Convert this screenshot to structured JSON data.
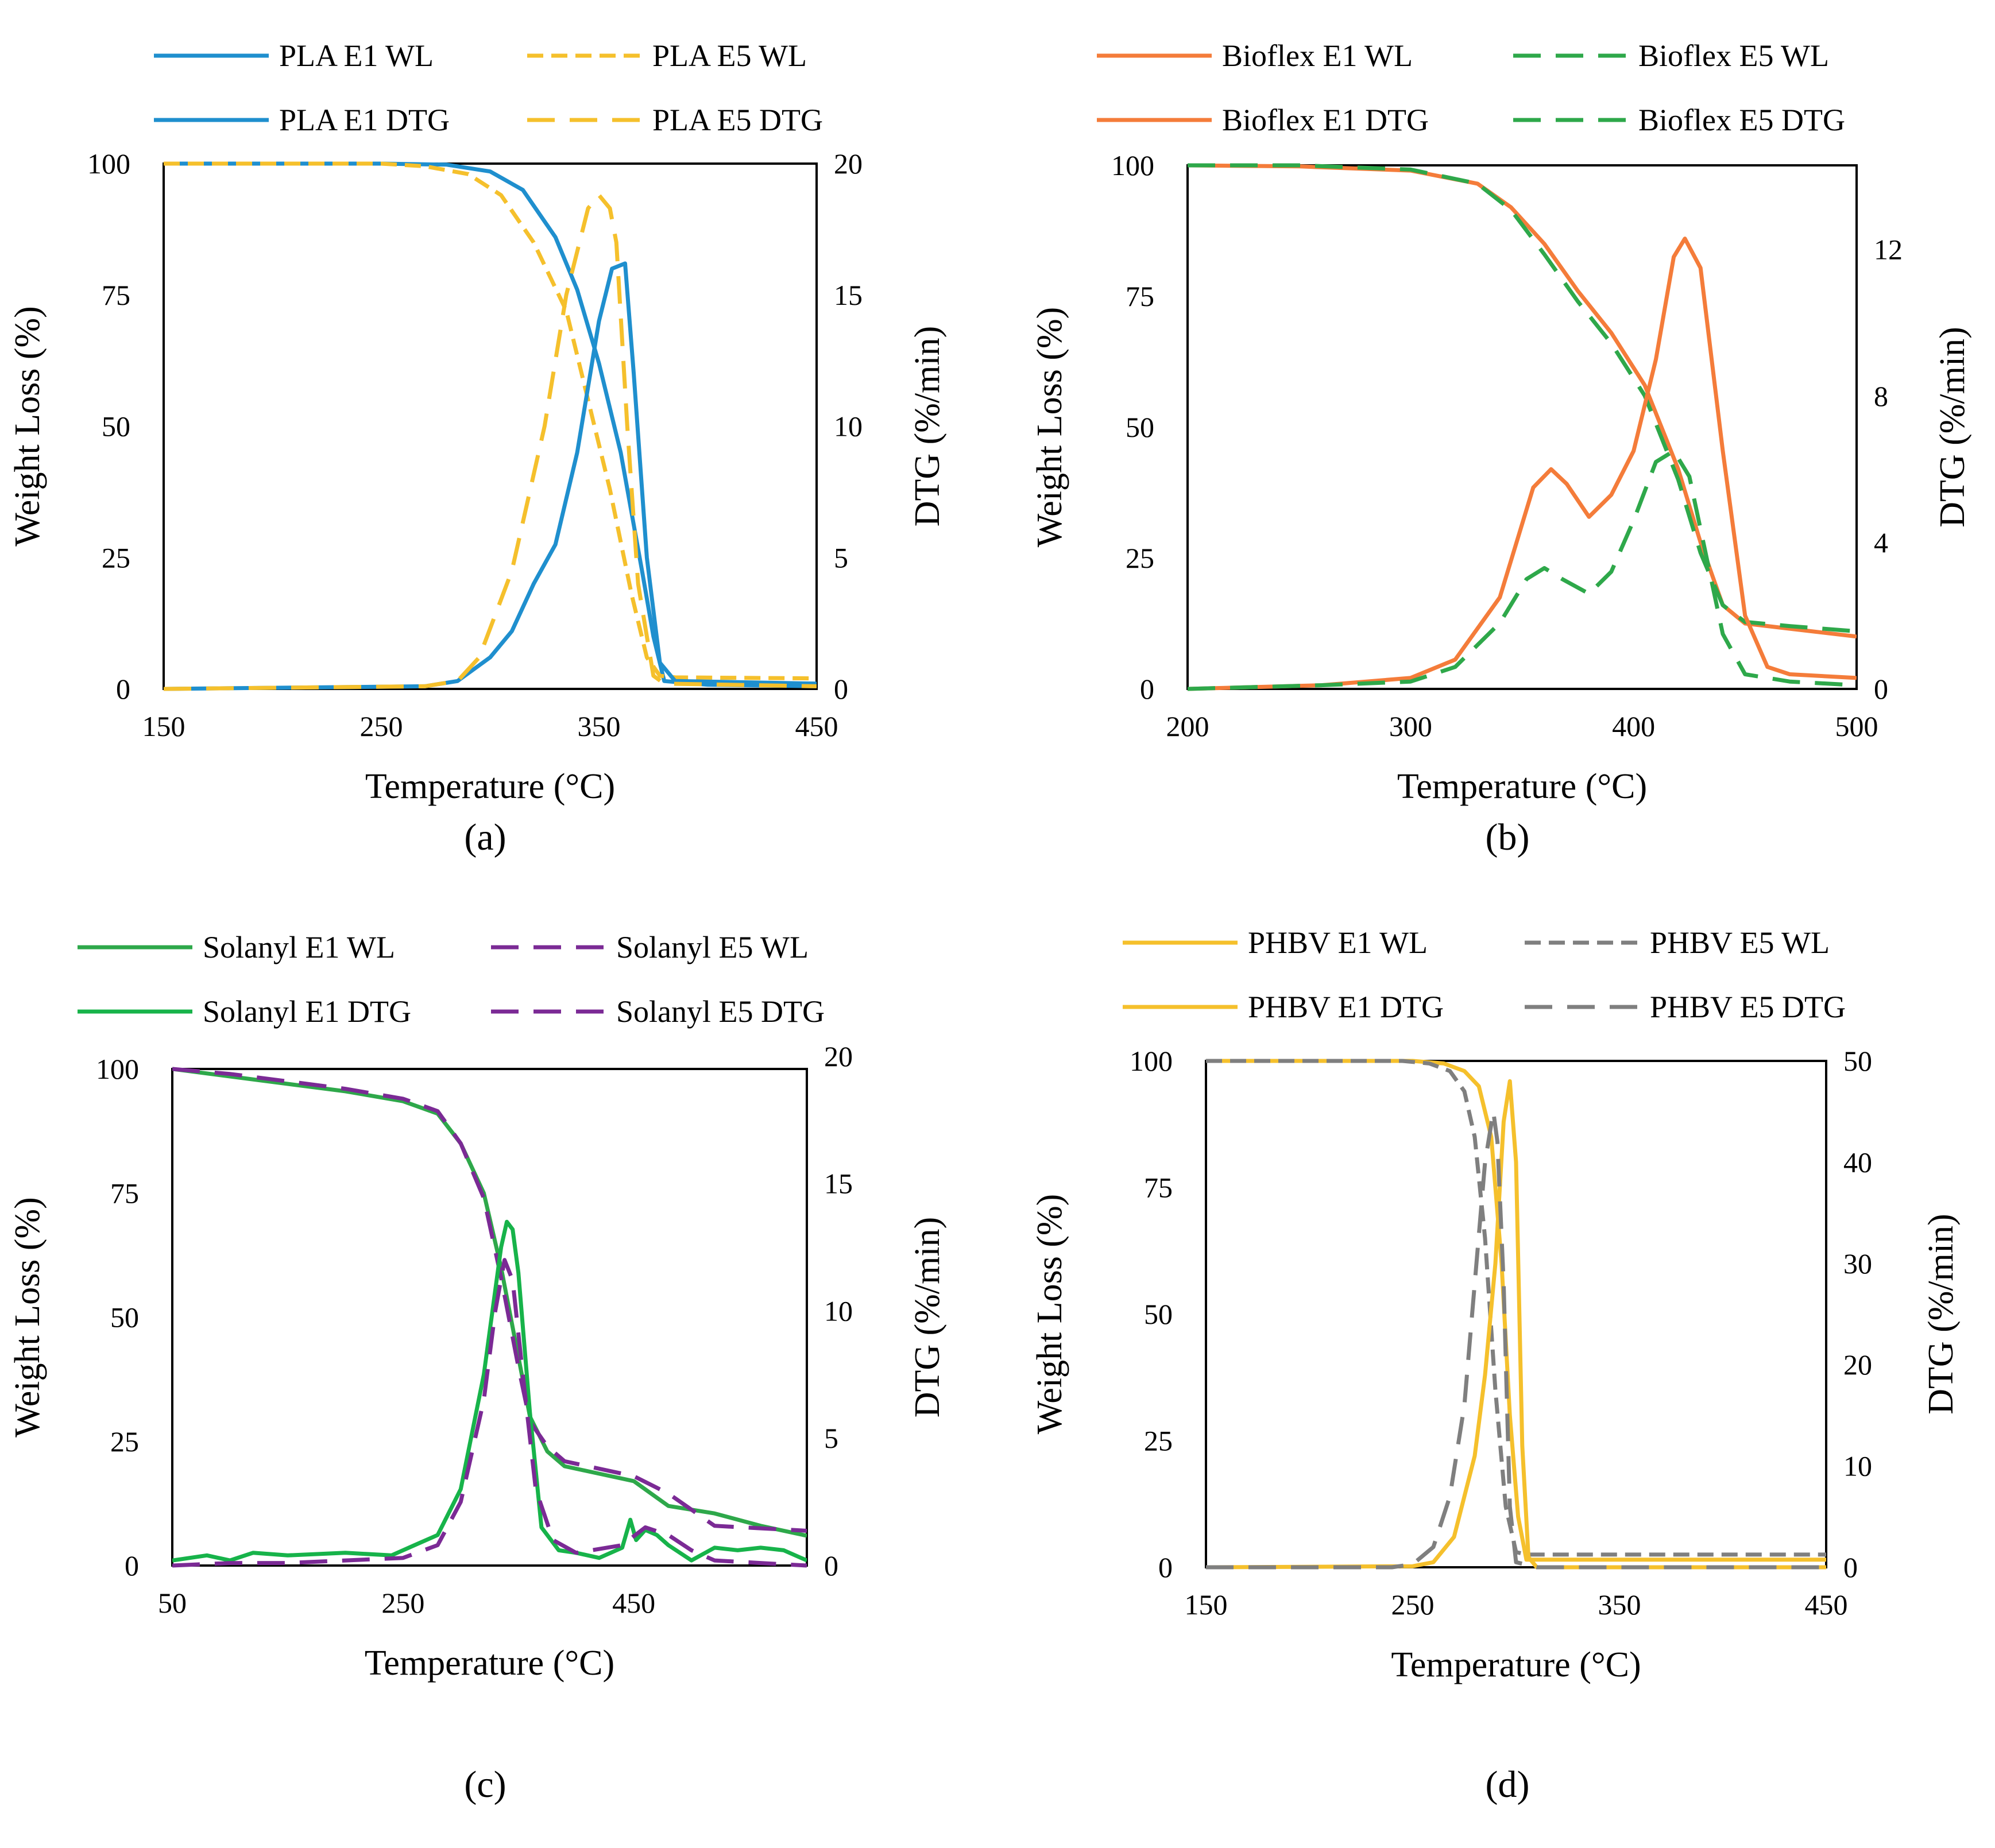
{
  "figure": {
    "panels": [
      "a",
      "b",
      "c",
      "d"
    ]
  },
  "chart_data": [
    {
      "id": "a",
      "type": "line",
      "panel_label": "(a)",
      "xlabel": "Temperature (°C)",
      "ylabel": "Weight Loss (%)",
      "y2label": "DTG (%/min)",
      "xlim": [
        150,
        450
      ],
      "ylim": [
        0,
        100
      ],
      "y2lim": [
        0,
        20
      ],
      "xticks": [
        150,
        250,
        350,
        450
      ],
      "yticks": [
        0,
        25,
        50,
        75,
        100
      ],
      "y2ticks": [
        0,
        5,
        10,
        15,
        20
      ],
      "legend": [
        {
          "label": "PLA E1 WL",
          "color": "#1f8fce",
          "dash": "solid"
        },
        {
          "label": "PLA E5 WL",
          "color": "#f5c02c",
          "dash": "short"
        },
        {
          "label": "PLA E1 DTG",
          "color": "#1f8fce",
          "dash": "solid"
        },
        {
          "label": "PLA E5 DTG",
          "color": "#f5c02c",
          "dash": "long"
        }
      ],
      "series": [
        {
          "name": "PLA E1 WL",
          "axis": "left",
          "color": "#1f8fce",
          "dash": "solid",
          "x": [
            150,
            250,
            280,
            300,
            315,
            330,
            340,
            350,
            360,
            370,
            375,
            380,
            400,
            450
          ],
          "y": [
            100,
            100,
            99.8,
            98.5,
            95,
            86,
            76,
            62,
            45,
            22,
            10,
            1.5,
            0.8,
            0.5
          ]
        },
        {
          "name": "PLA E5 WL",
          "axis": "left",
          "color": "#f5c02c",
          "dash": "short",
          "x": [
            150,
            250,
            270,
            290,
            305,
            320,
            335,
            345,
            355,
            365,
            372,
            378,
            385,
            450
          ],
          "y": [
            100,
            100,
            99.5,
            98,
            94,
            85,
            72,
            55,
            38,
            18,
            6,
            2.5,
            2.2,
            2
          ]
        },
        {
          "name": "PLA E1 DTG",
          "axis": "right",
          "color": "#1f8fce",
          "dash": "solid",
          "x": [
            150,
            270,
            285,
            300,
            310,
            320,
            330,
            340,
            350,
            356,
            362,
            366,
            372,
            378,
            385,
            450
          ],
          "y": [
            0,
            0.1,
            0.3,
            1.2,
            2.2,
            4,
            5.5,
            9,
            14,
            16,
            16.2,
            12,
            5,
            1,
            0.3,
            0.2
          ]
        },
        {
          "name": "PLA E5 DTG",
          "axis": "right",
          "color": "#f5c02c",
          "dash": "long",
          "x": [
            150,
            270,
            285,
            295,
            310,
            325,
            335,
            345,
            350,
            355,
            358,
            363,
            368,
            375,
            380,
            450
          ],
          "y": [
            0,
            0.1,
            0.3,
            1.2,
            4.5,
            10,
            15,
            18.3,
            18.8,
            18.3,
            17,
            10,
            4,
            0.5,
            0.2,
            0.1
          ]
        }
      ]
    },
    {
      "id": "b",
      "type": "line",
      "panel_label": "(b)",
      "xlabel": "Temperature (°C)",
      "ylabel": "Weight Loss (%)",
      "y2label": "DTG (%/min)",
      "xlim": [
        200,
        500
      ],
      "ylim": [
        0,
        100
      ],
      "y2lim": [
        0,
        14.3
      ],
      "xticks": [
        200,
        300,
        400,
        500
      ],
      "yticks": [
        0,
        25,
        50,
        75,
        100
      ],
      "y2ticks": [
        0,
        4,
        8,
        12
      ],
      "legend": [
        {
          "label": "Bioflex E1 WL",
          "color": "#f47c3a",
          "dash": "solid"
        },
        {
          "label": "Bioflex E5 WL",
          "color": "#2ea84a",
          "dash": "long"
        },
        {
          "label": "Bioflex E1 DTG",
          "color": "#f47c3a",
          "dash": "solid"
        },
        {
          "label": "Bioflex E5 DTG",
          "color": "#2ea84a",
          "dash": "long"
        }
      ],
      "series": [
        {
          "name": "Bioflex E1 WL",
          "axis": "left",
          "color": "#f47c3a",
          "dash": "solid",
          "x": [
            200,
            250,
            300,
            330,
            345,
            360,
            375,
            390,
            405,
            420,
            430,
            440,
            450,
            470,
            500
          ],
          "y": [
            100,
            99.8,
            99,
            96.5,
            92,
            85,
            76,
            68,
            58,
            42,
            28,
            16,
            12.5,
            11.5,
            10
          ]
        },
        {
          "name": "Bioflex E5 WL",
          "axis": "left",
          "color": "#2ea84a",
          "dash": "long",
          "x": [
            200,
            250,
            300,
            330,
            345,
            360,
            375,
            390,
            405,
            420,
            430,
            440,
            450,
            470,
            500
          ],
          "y": [
            100,
            100,
            99.2,
            96.5,
            91.5,
            83,
            74,
            66,
            56,
            40,
            26,
            16,
            12.8,
            12,
            11
          ]
        },
        {
          "name": "Bioflex E1 DTG",
          "axis": "right",
          "color": "#f47c3a",
          "dash": "solid",
          "x": [
            200,
            260,
            300,
            320,
            340,
            355,
            363,
            370,
            380,
            390,
            400,
            410,
            418,
            423,
            430,
            440,
            450,
            460,
            470,
            500
          ],
          "y": [
            0,
            0.1,
            0.3,
            0.8,
            2.5,
            5.5,
            6,
            5.6,
            4.7,
            5.3,
            6.5,
            9,
            11.8,
            12.3,
            11.5,
            6.5,
            2,
            0.6,
            0.4,
            0.3
          ]
        },
        {
          "name": "Bioflex E5 DTG",
          "axis": "right",
          "color": "#2ea84a",
          "dash": "long",
          "x": [
            200,
            260,
            300,
            320,
            340,
            352,
            360,
            368,
            380,
            390,
            400,
            410,
            418,
            425,
            432,
            440,
            450,
            470,
            500
          ],
          "y": [
            0,
            0.1,
            0.2,
            0.6,
            1.8,
            3,
            3.3,
            3,
            2.6,
            3.2,
            4.6,
            6.2,
            6.5,
            5.8,
            3.8,
            1.5,
            0.4,
            0.2,
            0.1
          ]
        }
      ]
    },
    {
      "id": "c",
      "type": "line",
      "panel_label": "(c)",
      "xlabel": "Temperature (°C)",
      "ylabel": "Weight Loss (%)",
      "y2label": "DTG (%/min)",
      "xlim": [
        50,
        600
      ],
      "ylim": [
        0,
        100
      ],
      "y2lim": [
        0,
        19.5
      ],
      "xticks": [
        50,
        250,
        450
      ],
      "yticks": [
        0,
        25,
        50,
        75,
        100
      ],
      "y2ticks": [
        0,
        5,
        10,
        15,
        20
      ],
      "legend": [
        {
          "label": "Solanyl E1 WL",
          "color": "#2ea84a",
          "dash": "solid"
        },
        {
          "label": "Solanyl E5 WL",
          "color": "#7b2a95",
          "dash": "long"
        },
        {
          "label": "Solanyl E1 DTG",
          "color": "#17b34a",
          "dash": "solid"
        },
        {
          "label": "Solanyl E5 DTG",
          "color": "#7b2a95",
          "dash": "long"
        }
      ],
      "series": [
        {
          "name": "Solanyl E1 WL",
          "axis": "left",
          "color": "#2ea84a",
          "dash": "solid",
          "x": [
            50,
            100,
            150,
            200,
            250,
            280,
            300,
            320,
            335,
            350,
            360,
            375,
            390,
            420,
            450,
            480,
            520,
            560,
            600
          ],
          "y": [
            100,
            98.5,
            97,
            95.5,
            93.5,
            91,
            85,
            75,
            60,
            42,
            30,
            23,
            20,
            18.5,
            17,
            12,
            10.5,
            8,
            6
          ]
        },
        {
          "name": "Solanyl E5 WL",
          "axis": "left",
          "color": "#7b2a95",
          "dash": "long",
          "x": [
            50,
            100,
            150,
            200,
            250,
            280,
            300,
            320,
            335,
            350,
            360,
            375,
            390,
            420,
            450,
            480,
            520,
            560,
            600
          ],
          "y": [
            100,
            99,
            97.5,
            96,
            94,
            91.5,
            85,
            74,
            58,
            40,
            29,
            24,
            21,
            19.5,
            18,
            14.5,
            8,
            7.5,
            7
          ]
        },
        {
          "name": "Solanyl E1 DTG",
          "axis": "right",
          "color": "#17b34a",
          "dash": "solid",
          "x": [
            50,
            80,
            100,
            120,
            150,
            200,
            240,
            260,
            280,
            300,
            320,
            335,
            340,
            345,
            350,
            360,
            370,
            385,
            400,
            420,
            440,
            447,
            452,
            460,
            470,
            480,
            500,
            520,
            540,
            560,
            580,
            600
          ],
          "y": [
            0.2,
            0.4,
            0.2,
            0.5,
            0.4,
            0.5,
            0.4,
            0.8,
            1.2,
            3,
            7.5,
            12.5,
            13.5,
            13.2,
            11.5,
            6,
            1.5,
            0.6,
            0.5,
            0.3,
            0.7,
            1.8,
            1,
            1.4,
            1.2,
            0.8,
            0.2,
            0.7,
            0.6,
            0.7,
            0.6,
            0.2
          ]
        },
        {
          "name": "Solanyl E5 DTG",
          "axis": "right",
          "color": "#7b2a95",
          "dash": "long",
          "x": [
            50,
            100,
            150,
            200,
            250,
            280,
            300,
            320,
            330,
            338,
            345,
            355,
            365,
            380,
            400,
            440,
            460,
            480,
            500,
            520,
            560,
            600
          ],
          "y": [
            0,
            0.1,
            0.1,
            0.2,
            0.3,
            0.8,
            2.5,
            6.5,
            10,
            12,
            11.2,
            7,
            3,
            1,
            0.5,
            0.8,
            1.5,
            1.2,
            0.6,
            0.2,
            0.1,
            0
          ]
        }
      ]
    },
    {
      "id": "d",
      "type": "line",
      "panel_label": "(d)",
      "xlabel": "Temperature (°C)",
      "ylabel": "Weight Loss (%)",
      "y2label": "DTG (%/min)",
      "xlim": [
        150,
        450
      ],
      "ylim": [
        0,
        100
      ],
      "y2lim": [
        0,
        50
      ],
      "xticks": [
        150,
        250,
        350,
        450
      ],
      "yticks": [
        0,
        25,
        50,
        75,
        100
      ],
      "y2ticks": [
        0,
        10,
        20,
        30,
        40,
        50
      ],
      "legend": [
        {
          "label": "PHBV E1 WL",
          "color": "#f5c02c",
          "dash": "solid"
        },
        {
          "label": "PHBV E5 WL",
          "color": "#7f7f7f",
          "dash": "short"
        },
        {
          "label": "PHBV E1 DTG",
          "color": "#f5c02c",
          "dash": "solid"
        },
        {
          "label": "PHBV E5 DTG",
          "color": "#7f7f7f",
          "dash": "long"
        }
      ],
      "series": [
        {
          "name": "PHBV E1 WL",
          "axis": "left",
          "color": "#f5c02c",
          "dash": "solid",
          "x": [
            150,
            250,
            265,
            275,
            282,
            288,
            293,
            297,
            301,
            305,
            320,
            450
          ],
          "y": [
            100,
            100,
            99.5,
            98,
            95,
            85,
            60,
            30,
            10,
            1.5,
            1.5,
            1.5
          ]
        },
        {
          "name": "PHBV E5 WL",
          "axis": "left",
          "color": "#7f7f7f",
          "dash": "short",
          "x": [
            150,
            245,
            258,
            268,
            275,
            280,
            285,
            290,
            295,
            300,
            305,
            450
          ],
          "y": [
            100,
            100,
            99.5,
            98,
            94,
            85,
            65,
            35,
            12,
            3,
            2.5,
            2.5
          ]
        },
        {
          "name": "PHBV E1 DTG",
          "axis": "right",
          "color": "#f5c02c",
          "dash": "solid",
          "x": [
            150,
            250,
            260,
            270,
            280,
            285,
            290,
            294,
            297,
            300,
            303,
            306,
            310,
            450
          ],
          "y": [
            0,
            0.1,
            0.5,
            3,
            11,
            19,
            30,
            44,
            48,
            40,
            12,
            1,
            0,
            0
          ]
        },
        {
          "name": "PHBV E5 DTG",
          "axis": "right",
          "color": "#7f7f7f",
          "dash": "long",
          "x": [
            150,
            240,
            250,
            260,
            268,
            275,
            280,
            285,
            289,
            291,
            294,
            297,
            300,
            310,
            450
          ],
          "y": [
            0,
            0,
            0.3,
            2,
            7,
            16,
            28,
            40,
            45,
            42,
            28,
            6,
            0.5,
            0,
            0
          ]
        }
      ]
    }
  ]
}
